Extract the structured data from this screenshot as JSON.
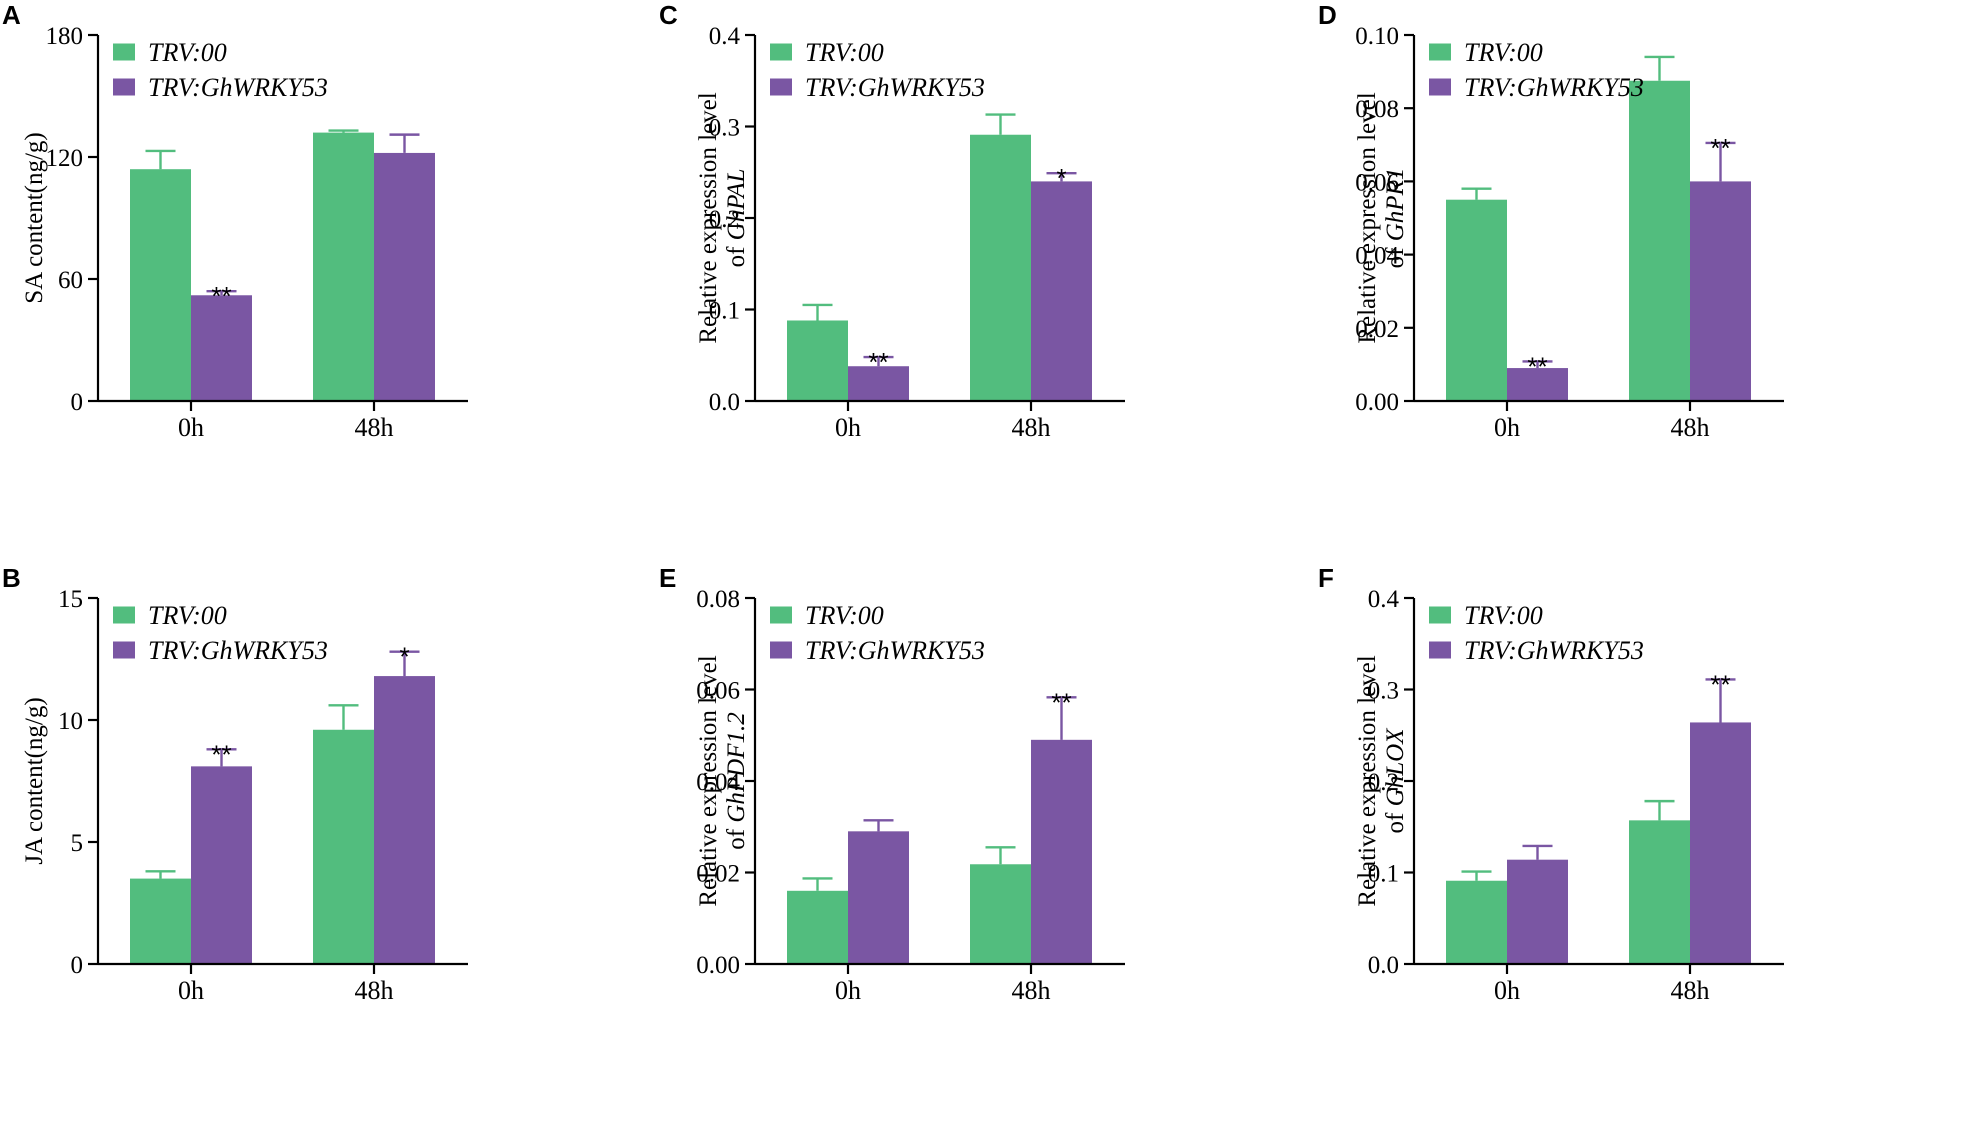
{
  "colors": {
    "trv00": "#52bd7e",
    "trvwrky": "#7a56a3"
  },
  "chart_data": [
    {
      "panel": "A",
      "type": "bar",
      "categories": [
        "0h",
        "48h"
      ],
      "ylabel": "SA content(ng/g)",
      "ylabel_italic": "",
      "ylabel_line1": "",
      "ylim": [
        0,
        180
      ],
      "yticks": [
        "0",
        "60",
        "120",
        "180"
      ],
      "tick_values": [
        0,
        60,
        120,
        180
      ],
      "legend": [
        "TRV:00",
        "TRV:GhWRKY53"
      ],
      "series": [
        {
          "name": "TRV:00",
          "values": [
            114,
            132
          ],
          "errors": [
            9,
            1
          ],
          "sig": [
            "",
            ""
          ]
        },
        {
          "name": "TRV:GhWRKY53",
          "values": [
            52,
            122
          ],
          "errors": [
            2,
            9
          ],
          "sig": [
            "**",
            ""
          ]
        }
      ]
    },
    {
      "panel": "B",
      "type": "bar",
      "categories": [
        "0h",
        "48h"
      ],
      "ylabel": "JA content(ng/g)",
      "ylabel_italic": "",
      "ylabel_line1": "",
      "ylim": [
        0,
        15
      ],
      "yticks": [
        "0",
        "5",
        "10",
        "15"
      ],
      "tick_values": [
        0,
        5,
        10,
        15
      ],
      "legend": [
        "TRV:00",
        "TRV:GhWRKY53"
      ],
      "series": [
        {
          "name": "TRV:00",
          "values": [
            3.5,
            9.6
          ],
          "errors": [
            0.3,
            1.0
          ],
          "sig": [
            "",
            ""
          ]
        },
        {
          "name": "TRV:GhWRKY53",
          "values": [
            8.1,
            11.8
          ],
          "errors": [
            0.7,
            1.0
          ],
          "sig": [
            "**",
            "*"
          ]
        }
      ]
    },
    {
      "panel": "C",
      "type": "bar",
      "categories": [
        "0h",
        "48h"
      ],
      "ylabel_line1": "Relative expression level",
      "ylabel": "of ",
      "ylabel_italic": "GhPAL",
      "ylim": [
        0,
        0.4
      ],
      "yticks": [
        "0.0",
        "0.1",
        "0.2",
        "0.3",
        "0.4"
      ],
      "tick_values": [
        0,
        0.1,
        0.2,
        0.3,
        0.4
      ],
      "legend": [
        "TRV:00",
        "TRV:GhWRKY53"
      ],
      "series": [
        {
          "name": "TRV:00",
          "values": [
            0.088,
            0.291
          ],
          "errors": [
            0.017,
            0.022
          ],
          "sig": [
            "",
            ""
          ]
        },
        {
          "name": "TRV:GhWRKY53",
          "values": [
            0.038,
            0.24
          ],
          "errors": [
            0.01,
            0.009
          ],
          "sig": [
            "**",
            "*"
          ]
        }
      ]
    },
    {
      "panel": "D",
      "type": "bar",
      "categories": [
        "0h",
        "48h"
      ],
      "ylabel_line1": "Relative expression level",
      "ylabel": "of ",
      "ylabel_italic": "GhPR1",
      "ylim": [
        0,
        0.1
      ],
      "yticks": [
        "0.00",
        "0.02",
        "0.04",
        "0.06",
        "0.08",
        "0.10"
      ],
      "tick_values": [
        0,
        0.02,
        0.04,
        0.06,
        0.08,
        0.1
      ],
      "legend": [
        "TRV:00",
        "TRV:GhWRKY53"
      ],
      "series": [
        {
          "name": "TRV:00",
          "values": [
            0.055,
            0.0875
          ],
          "errors": [
            0.003,
            0.0065
          ],
          "sig": [
            "",
            ""
          ]
        },
        {
          "name": "TRV:GhWRKY53",
          "values": [
            0.009,
            0.06
          ],
          "errors": [
            0.0018,
            0.0105
          ],
          "sig": [
            "**",
            "**"
          ]
        }
      ]
    },
    {
      "panel": "E",
      "type": "bar",
      "categories": [
        "0h",
        "48h"
      ],
      "ylabel_line1": "Relative expression level",
      "ylabel": "of ",
      "ylabel_italic": "GhPDF1.2",
      "ylim": [
        0,
        0.08
      ],
      "yticks": [
        "0.00",
        "0.02",
        "0.04",
        "0.06",
        "0.08"
      ],
      "tick_values": [
        0,
        0.02,
        0.04,
        0.06,
        0.08
      ],
      "legend": [
        "TRV:00",
        "TRV:GhWRKY53"
      ],
      "series": [
        {
          "name": "TRV:00",
          "values": [
            0.016,
            0.0218
          ],
          "errors": [
            0.0027,
            0.0037
          ],
          "sig": [
            "",
            ""
          ]
        },
        {
          "name": "TRV:GhWRKY53",
          "values": [
            0.029,
            0.049
          ],
          "errors": [
            0.0024,
            0.0093
          ],
          "sig": [
            "",
            "**"
          ]
        }
      ]
    },
    {
      "panel": "F",
      "type": "bar",
      "categories": [
        "0h",
        "48h"
      ],
      "ylabel_line1": "Relative expression level",
      "ylabel": "of ",
      "ylabel_italic": "GhLOX",
      "ylim": [
        0,
        0.4
      ],
      "yticks": [
        "0.0",
        "0.1",
        "0.2",
        "0.3",
        "0.4"
      ],
      "tick_values": [
        0,
        0.1,
        0.2,
        0.3,
        0.4
      ],
      "legend": [
        "TRV:00",
        "TRV:GhWRKY53"
      ],
      "series": [
        {
          "name": "TRV:00",
          "values": [
            0.091,
            0.157
          ],
          "errors": [
            0.01,
            0.021
          ],
          "sig": [
            "",
            ""
          ]
        },
        {
          "name": "TRV:GhWRKY53",
          "values": [
            0.114,
            0.264
          ],
          "errors": [
            0.015,
            0.047
          ],
          "sig": [
            "",
            "**"
          ]
        }
      ]
    }
  ]
}
